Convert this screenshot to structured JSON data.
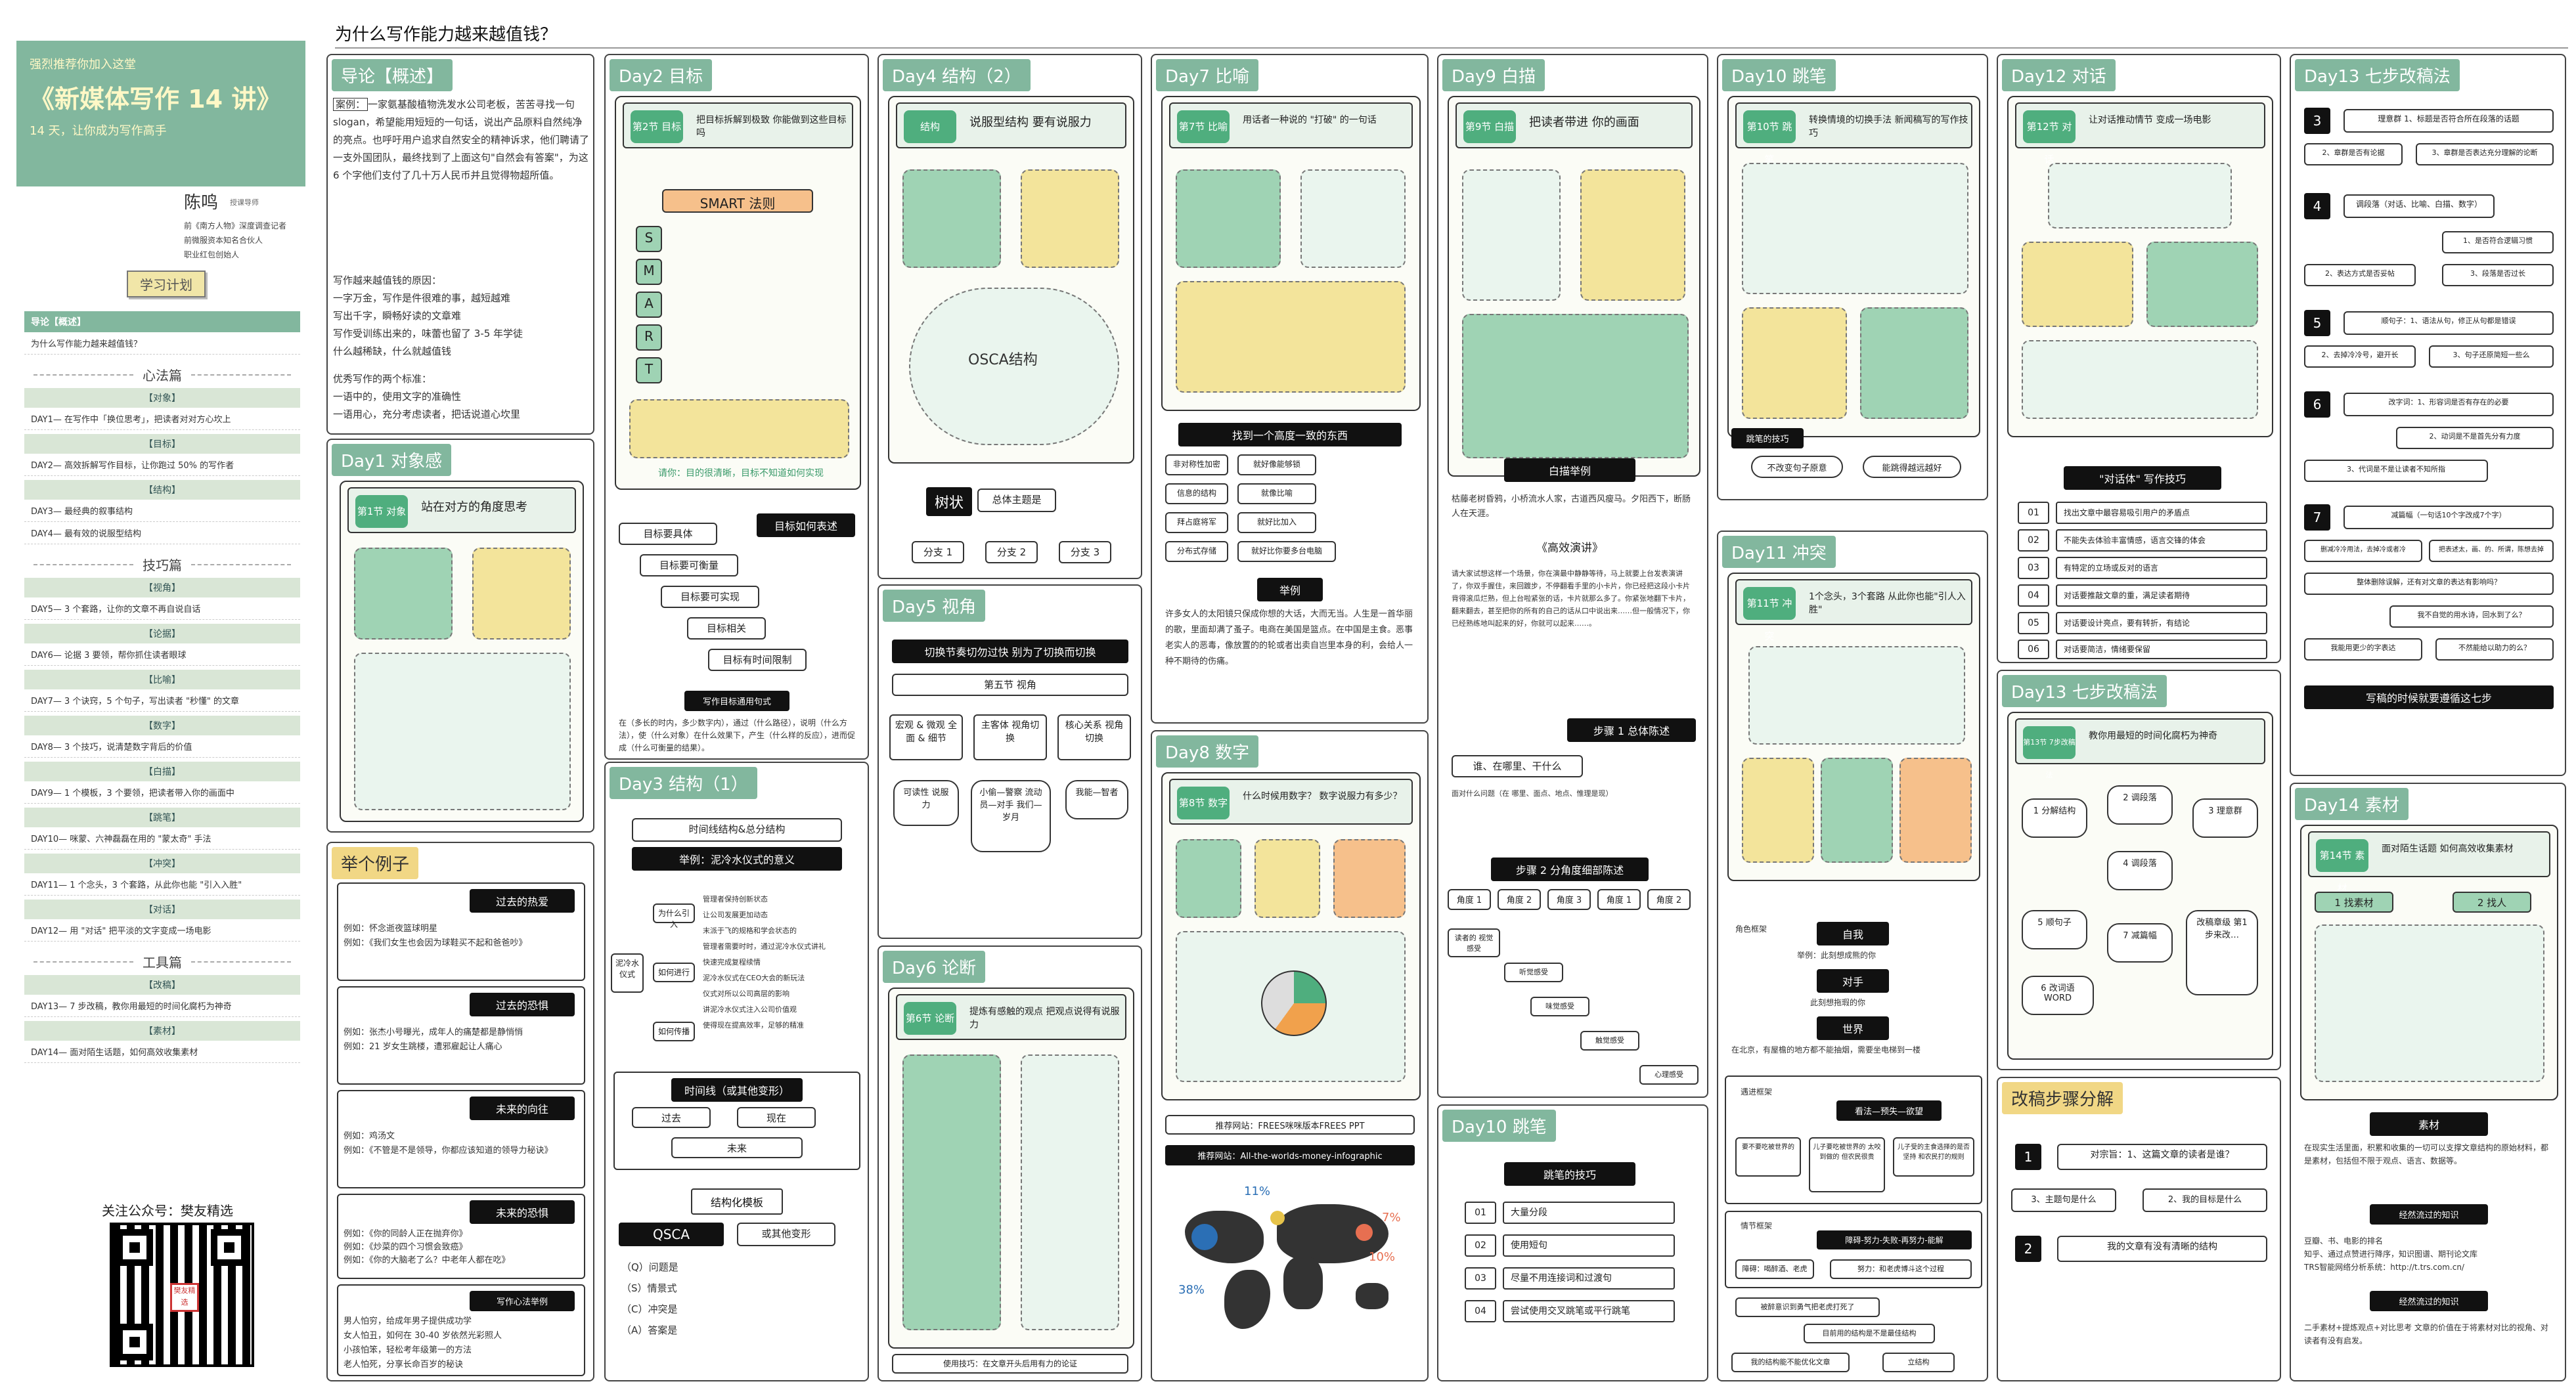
{
  "page_title": "为什么写作能力越来越值钱？",
  "sidebar": {
    "recommend": "强烈推荐你加入这堂",
    "course": "《新媒体写作 14 讲》",
    "tagline": "14 天，让你成为写作高手",
    "author_name": "陈鸣",
    "author_role": "授课导师",
    "bio": [
      "前《南方人物》深度调查记者",
      "前微服资本知名合伙人",
      "职业红包创始人"
    ],
    "plan_button": "学习计划",
    "intro_header": "导论【概述】",
    "intro_item": "为什么写作能力越来越值钱？",
    "groups": [
      {
        "name": "心法篇",
        "items": [
          {
            "sec": "【对象】",
            "text": "DAY1— 在写作中「换位思考」，把读者对对方心坎上"
          },
          {
            "sec": "【目标】",
            "text": "DAY2— 高效拆解写作目标，让你跑过 50% 的写作者"
          },
          {
            "sec": "【结构】",
            "text": "DAY3— 最经典的叙事结构"
          },
          {
            "sec": "",
            "text": "DAY4— 最有效的说服型结构"
          }
        ]
      },
      {
        "name": "技巧篇",
        "items": [
          {
            "sec": "【视角】",
            "text": "DAY5— 3 个套路，让你的文章不再自说自话"
          },
          {
            "sec": "【论据】",
            "text": "DAY6— 论据 3 要领，帮你抓住读者眼球"
          },
          {
            "sec": "【比喻】",
            "text": "DAY7— 3 个诀窍，5 个句子，写出读者 \"秒懂\" 的文章"
          },
          {
            "sec": "【数字】",
            "text": "DAY8— 3 个技巧，说清楚数字背后的价值"
          },
          {
            "sec": "【白描】",
            "text": "DAY9— 1 个模板，3 个要领，把读者带入你的画面中"
          },
          {
            "sec": "【跳笔】",
            "text": "DAY10— 咪蒙、六神磊磊在用的 \"蒙太奇\" 手法"
          },
          {
            "sec": "【冲突】",
            "text": "DAY11— 1 个念头，3 个套路，从此你也能 \"引入入胜\""
          },
          {
            "sec": "【对话】",
            "text": "DAY12— 用 \"对话\" 把平淡的文字变成一场电影"
          }
        ]
      },
      {
        "name": "工具篇",
        "items": [
          {
            "sec": "【改稿】",
            "text": "DAY13— 7 步改稿，教你用最短的时间化腐朽为神奇"
          },
          {
            "sec": "【素材】",
            "text": "DAY14— 面对陌生话题，如何高效收集素材"
          }
        ]
      }
    ],
    "qr_title": "关注公众号：樊友精选",
    "qr_logo": "樊友精选"
  },
  "intro_panel": {
    "title": "导论【概述】",
    "case_label": "案例：",
    "case": "一家氨基酸植物洗发水公司老板，苦苦寻找一句 slogan，希望能用短短的一句话，说出产品原料自然纯净的亮点。也呼吁用户追求自然安全的精神诉求，他们聘请了一支外国团队，最终找到了上面这句\"自然会有答案\"，为这 6 个字他们支付了几十万人民币并且觉得物超所值。",
    "reasons_title": "写作越来越值钱的原因：",
    "reasons": [
      "一字万金，写作是件很难的事，越短越难",
      "写出千字，瞬畅好读的文章难",
      "写作受训练出来的，味蕾也留了 3-5 年学徒",
      "什么越稀缺，什么就越值钱"
    ],
    "standards_title": "优秀写作的两个标准：",
    "standards": [
      "一语中的，使用文字的准确性",
      "一语用心，充分考虑读者，把话说道心坎里"
    ]
  },
  "day1": {
    "title": "Day1 对象感",
    "badge": "第1节 对象",
    "caption": "站在对方的角度思考"
  },
  "example": {
    "title": "举个例子",
    "sections": [
      {
        "head": "过去的热爱",
        "lines": [
          "例如：怀念逝夜篮球明星",
          "例如：《我们女生也会因为球鞋买不起和爸爸吵》"
        ]
      },
      {
        "head": "过去的恐惧",
        "lines": [
          "例如：张杰小号曝光，成年人的痛楚都是静悄悄",
          "例如：21 岁女生跳楼，遭邪雇起让人痛心"
        ]
      },
      {
        "head": "未来的向往",
        "lines": [
          "例如：鸡汤文",
          "例如：《不管是不是领导，你都应该知道的领导力秘诀》"
        ]
      },
      {
        "head": "未来的恐惧",
        "lines": [
          "例如：《你的同龄人正在抛弃你》",
          "例如：《炒菜的四个习惯会致癌》",
          "例如：《你的大脑老了么？中老年人都在吃》"
        ]
      }
    ],
    "bottom_head": "写作心法举例",
    "bottom": [
      "男人怕穷，给成年男子提供成功学",
      "女人怕丑，如何在 30-40 岁依然光彩照人",
      "小孩怕笨，轻松考年级第一的方法",
      "老人怕死，分享长命百岁的秘诀"
    ]
  },
  "day2": {
    "title": "Day2 目标",
    "badge": "第2节 目标",
    "caption": "把目标拆解到极致 你能做到这些目标吗",
    "smart": "SMART 法则",
    "smart_letters": [
      "S",
      "M",
      "A",
      "R",
      "T"
    ],
    "footer_note": "请你：目的很清晰，目标不知道如何实现",
    "boxes": [
      "目标要具体",
      "目标要可衡量",
      "目标要可实现",
      "目标相关",
      "目标有时间限制"
    ],
    "black": "目标如何表述",
    "rule_title": "写作目标通用句式",
    "rule": "在（多长的时内，多少数字内），通过（什么路径），说明（什么方法），使（什么对象）在什么效果下，产生（什么样的反应），进而促成（什么可衡量的结果）。"
  },
  "day3": {
    "title": "Day3 结构（1）",
    "top": "时间线结构&总分结构",
    "example": "举例：泥冷水仪式的意义",
    "left": "泥冷水仪式",
    "branches": [
      "为什么引入",
      "如何进行",
      "如何传播"
    ],
    "leaves": [
      "管理者保持创新状态",
      "让公司发展更加动态",
      "末派于飞的规格和学会状态的",
      "管理者需要时时，通过泥冷水仪式讲礼",
      "快速完成复程续情",
      "泥冷水仪式在CEO大会的新玩法",
      "仪式对所以公司高层的影响",
      "讲泥冷水仪式注入公司价值观",
      "使得现在提高效率，足够的精准"
    ],
    "timeline_head": "时间线（或其他变形）",
    "past": "过去",
    "now": "现在",
    "future": "未来",
    "template_head": "结构化模板",
    "qsca": "QSCA",
    "qsca_alt": "或其他变形",
    "qsca_items": [
      "（Q）问题是",
      "（S）情景式",
      "（C）冲突是",
      "（A）答案是"
    ]
  },
  "day4": {
    "title": "Day4 结构（2）",
    "badge": "结构",
    "caption": "说服型结构 要有说服力",
    "oscar": "OSCA结构",
    "black": "树状",
    "root": "总体主题是",
    "leaves": [
      "分支 1",
      "分支 2",
      "分支 3"
    ]
  },
  "day5": {
    "title": "Day5 视角",
    "black": "切换节奏切勿过快  别为了切换而切换",
    "section": "第五节    视角",
    "cols": [
      "宏观 & 微观 全面 & 细节",
      "主客体 视角切换",
      "核心关系 视角切换"
    ],
    "subs": [
      "可读性 说服力",
      "小偷—警察 流动员—对手 我们—岁月",
      "我能—智者"
    ]
  },
  "day6": {
    "title": "Day6 论断",
    "badge": "第6节 论断",
    "caption": "提炼有感触的观点 把观点说得有说服力",
    "note": "使用技巧：在文章开头后用有力的论证"
  },
  "day7": {
    "title": "Day7 比喻",
    "badge": "第7节 比喻",
    "caption": "用话者一种说的 \"打破\" 的一句话",
    "black": "找到一个高度一致的东西",
    "pairs": [
      [
        "非对称性加密",
        "就好像能够锁"
      ],
      [
        "信息的结构",
        "就像比喻"
      ],
      [
        "拜占庭将军",
        "就好比加入"
      ],
      [
        "分布式存储",
        "就好比你要多台电脑"
      ]
    ],
    "example": "举例",
    "text": "许多女人的太阳镜只保成你想的大话，大而无当。人生是一首华丽的歌，里面却满了蚤子。电商在美国是篮点。在中国是主食。恶事老实人的恶毒，像放置的的轮或者出卖自岂里本身的利，会给人一种不期待的伤痛。"
  },
  "day8": {
    "title": "Day8 数字",
    "badge": "第8节 数字",
    "caption": "什么时候用数字？ 数字说服力有多少？",
    "rec1": "推荐网站：FREES咪咪版本FREES PPT",
    "rec2": "推荐网站：All-the-worlds-money-infographic",
    "map_labels": [
      "11%",
      "7%",
      "10%",
      "38%"
    ]
  },
  "day9": {
    "title": "Day9 白描",
    "badge": "第9节 白描",
    "caption": "把读者带进 你的画面",
    "black": "白描举例",
    "text1": "枯藤老树昏鸦，小桥流水人家，古道西风瘦马。夕阳西下，断肠人在天涯。",
    "speech": "《高效演讲》",
    "text2": "请大家试想这样一个场景，你在演最中静静等待，马上就要上台发表演讲了，你双手握住，来回踱步，不停翻看手里的小卡片，你已经把这段小卡片背得滚瓜烂熟，但上台啦紧张的话，卡片就那么多了。你紧张地翻下卡片，翻来翻去，甚至把你的所有的自己的话从口中说出来……但一般情况下，你已经熟练地叫起来的好，你就可以起来……。",
    "step1": "步骤 1 总体陈述",
    "step1_q": "谁、在哪里、干什么",
    "step1_note": "面对什么问题（在 哪里、面点、地点、惟理是现）",
    "step2": "步骤 2 分角度细部陈述",
    "angles": [
      "角度 1",
      "角度 2",
      "角度 3",
      "角度 1",
      "角度 2"
    ],
    "sub": [
      "读者的 视觉感受",
      "听觉感受",
      "味觉感受",
      "触觉感受",
      "心理感受"
    ]
  },
  "day10a": {
    "title": "Day10 跳笔",
    "badge": "第10节 跳笔",
    "caption": "转换情境的切换手法 新闻稿写的写作技巧",
    "black": "跳笔的技巧",
    "bubbles": [
      "不改变句子原意",
      "能跳得越远越好"
    ]
  },
  "day10b": {
    "title": "Day10 跳笔",
    "black": "跳笔的技巧",
    "rows": [
      [
        "01",
        "大量分段"
      ],
      [
        "02",
        "使用短句"
      ],
      [
        "03",
        "尽量不用连接词和过渡句"
      ],
      [
        "04",
        "尝试使用交叉跳笔或平行跳笔"
      ]
    ]
  },
  "day11": {
    "title": "Day11 冲突",
    "badge": "第11节 冲突",
    "caption": "1个念头，3个套路 从此你也能\"引人入胜\"",
    "step1": "角色框架",
    "self": "自我",
    "self_note": "举例：此刻想成熊的你",
    "rival": "对手",
    "rival_note": "此刻想拖瑕的你",
    "world": "世界",
    "world_note": "在北京，有屋檐的地方都不能抽烟，需要坐电梯到一楼",
    "step2": "遇进框架",
    "step2_black": "看法—预失—欲望",
    "step2_boxes": [
      "要不要吃被世界的",
      "儿子要吃被世界的 太咬到做的 但农民很贵",
      "儿子受的主食选择的是否坚持 和农民打的规则"
    ],
    "step3": "情节框架",
    "step3_black": "障碍-努力-失败-再努力-能解",
    "step3_rows": [
      "障碍：喝醉酒、老虎",
      "努力：和老虎博斗这个过程",
      "被醉意识到勇气把老虎打死了",
      "目前用的结构是不是最佳结构",
      "我的结构能不能优化文章",
      "立结构"
    ]
  },
  "day12": {
    "title": "Day12 对话",
    "badge": "第12节 对话",
    "caption": "让对话推动情节 变成一场电影",
    "black": "\"对话体\" 写作技巧",
    "rows": [
      [
        "01",
        "找出文章中最容易吸引用户的矛盾点"
      ],
      [
        "02",
        "不能失去体验丰富情感，语言交锋的体会"
      ],
      [
        "03",
        "有特定的立场或反对的语言"
      ],
      [
        "04",
        "对话要推敲文章的重，满足读者期待"
      ],
      [
        "05",
        "对话要设计亮点，要有转折，有结论"
      ],
      [
        "06",
        "对话要简洁，情绪要保留"
      ]
    ]
  },
  "day13a": {
    "title": "Day13 七步改稿法",
    "steps": [
      {
        "n": "3",
        "items": [
          "理意群 1、标题是否符合所在段落的话题",
          "2、章群是否有论据",
          "3、章群是否表达充分理解的论断"
        ]
      },
      {
        "n": "4",
        "items": [
          "调段落（对话、比喻、白描、数字）",
          "1、是否符合逻辑习惯",
          "2、表达方式是否妥帖",
          "3、段落是否过长"
        ]
      },
      {
        "n": "5",
        "items": [
          "顺句子：1、语法从句，修正从句都是错误",
          "2、去掉冷冷号，避开长",
          "3、句子还原简短一些么"
        ]
      },
      {
        "n": "6",
        "items": [
          "改字词：1、形容词是否有存在的必要",
          "2、动词是不是首先分有力度",
          "3、代词是不是让读者不知所指"
        ]
      },
      {
        "n": "7",
        "items": [
          "减篇幅（一句话10个字改成7个字）",
          "删减冷冷用法，去掉冷或者冷",
          "把表述太，画、的、所谓，陈想去掉",
          "整体删除误解，还有对文章的表达有影响吗？",
          "我不自觉的用水诗，回水到了么？",
          "我能用更少的字表达",
          "不然能给以助力的么？"
        ]
      }
    ],
    "black": "写稿的时候就要遵循这七步"
  },
  "day13b": {
    "title": "Day13 七步改稿法",
    "badge": "第13节 7步改稿法",
    "caption": "教你用最短的时间化腐朽为神奇",
    "nodes": [
      "1 分解结构",
      "2 调段落",
      "3 理意群",
      "4 调段落",
      "5 顺句子",
      "6 改词语 WORD",
      "7 减篇幅",
      "改稿章级 第1步来改…"
    ]
  },
  "revise": {
    "title": "改稿步骤分解",
    "items": [
      {
        "n": "1",
        "text": "对宗旨：1、这篇文章的读者是谁？"
      },
      {
        "n": "",
        "text": "3、主题句是什么"
      },
      {
        "n": "",
        "text": "2、我的目标是什么"
      },
      {
        "n": "2",
        "text": "我的文章有没有清晰的结构"
      }
    ]
  },
  "day14": {
    "title": "Day14 素材",
    "badge": "第14节 素材",
    "caption": "面对陌生话题 如何高效收集素材",
    "labels": [
      "1 找素材",
      "2 找人"
    ],
    "black1": "素材",
    "text1": "在现实生活里面，积累和收集的一切可以支撑文章结构的原始材料，都是素材，包括但不限于观点、语言、数据等。",
    "black2": "经然流过的知识",
    "text2": [
      "豆瓣、书、电影的排名",
      "知乎、通过点赞进行降序，知识图谱、期刊论文库",
      "TRS智能网络分析系统：http://t.trs.com.cn/"
    ],
    "black3": "经然流过的知识",
    "text3": "二手素材+提炼观点+对比思考 文章的价值在于将素材对比的视角、对读者有没有启发。"
  }
}
